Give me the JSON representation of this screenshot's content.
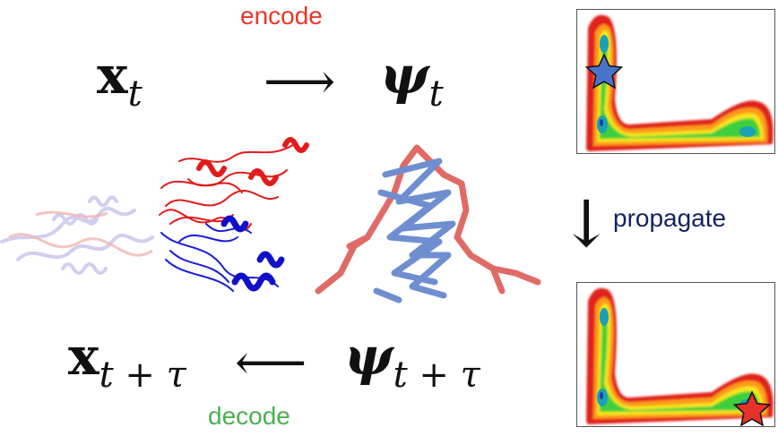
{
  "labels": {
    "encode": "encode",
    "decode": "decode",
    "propagate": "propagate"
  },
  "math": {
    "x_symbol": "x",
    "x_t_sub": "t",
    "psi_symbol": "ψ",
    "psi_t_sub": "t",
    "x_ttau_sub": "t + τ",
    "psi_ttau_sub": "t + τ",
    "arrow_right": "⟶",
    "arrow_left": "⟵",
    "arrow_down": "↓"
  },
  "colors": {
    "encode": "#e8362a",
    "decode": "#4caf50",
    "propagate": "#12235c",
    "star_top": "#4a74c9",
    "star_bottom": "#e5322b"
  }
}
